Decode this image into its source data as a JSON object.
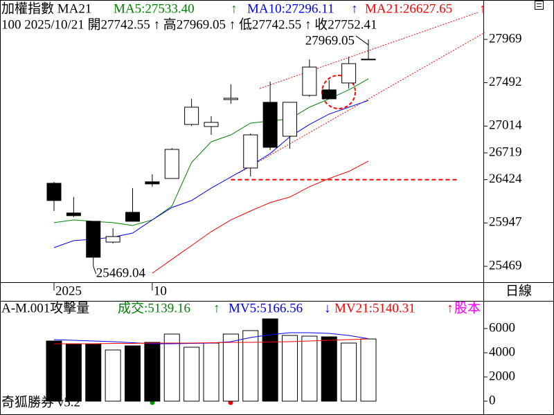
{
  "chart_data": [
    {
      "type": "candlestick",
      "title": "加權指數 MA21",
      "subtitle": "100 2025/10/21 開27742.55 ↑ 高27969.05 ↑ 低27742.55 ↑ 收27752.41",
      "categories": [
        "2025",
        null,
        null,
        null,
        null,
        "10",
        null,
        null,
        null,
        null,
        null,
        null,
        null,
        null,
        null,
        null,
        null
      ],
      "open": [
        26384,
        26057,
        25965,
        25736,
        26064,
        26400,
        26437,
        27032,
        27009,
        27306,
        26552,
        27276,
        26902,
        27352,
        27413,
        27489,
        27742.55
      ],
      "high": [
        26399,
        26232,
        25965,
        25889,
        26331,
        26483,
        26772,
        27314,
        27123,
        27474,
        26932,
        27504,
        27276,
        27748,
        27520,
        27778,
        27969.05
      ],
      "low": [
        26079,
        26011,
        25469.04,
        25721,
        25965,
        26346,
        26437,
        27017,
        26917,
        27260,
        26460,
        26750,
        26765,
        27337,
        27314,
        27428,
        27742.55
      ],
      "close": [
        26194,
        26027,
        25569,
        25797,
        25965,
        26377,
        26757,
        27222,
        27055,
        27321,
        26917,
        26780,
        27276,
        27664,
        27314,
        27702,
        27752.41
      ],
      "series": [
        {
          "name": "MA5:27533.40",
          "arrow": "↑",
          "color": "#008000",
          "values": [
            25950,
            25980,
            25965,
            25950,
            25919,
            25980,
            26133,
            26613,
            26841,
            26917,
            27047,
            27070,
            27093,
            27222,
            27314,
            27413,
            27533.4
          ]
        },
        {
          "name": "MA10:27296.11",
          "arrow": "↑",
          "color": "#0000ff",
          "values": [
            25675,
            25752,
            25767,
            25790,
            25835,
            25980,
            26117,
            26194,
            26331,
            26453,
            26575,
            26712,
            26895,
            27032,
            27146,
            27222,
            27296.11
          ]
        },
        {
          "name": "MA21:26627.65",
          "arrow": "↑",
          "color": "#ff0000",
          "values": [
            null,
            null,
            null,
            null,
            null,
            25393,
            25546,
            25698,
            25851,
            25980,
            26079,
            26171,
            26232,
            26346,
            26437,
            26514,
            26627.65
          ]
        }
      ],
      "annotations": [
        {
          "value": 27969.05,
          "label": "27969.05"
        },
        {
          "value": 25469.04,
          "label": "25469.04"
        }
      ],
      "support": 26424,
      "period": "日線",
      "ylim": [
        25294,
        28403
      ],
      "yticks": [
        27969,
        27492,
        27014,
        26719,
        26424,
        25947,
        25469
      ]
    },
    {
      "type": "volume",
      "title": "A-M.001攻擊量",
      "series": [
        {
          "name": "成交:5139.16",
          "arrow": "↑",
          "color": "#008000",
          "values": [
            4971,
            4743,
            4743,
            4229,
            4571,
            4857,
            5543,
            4457,
            4800,
            5543,
            5829,
            6800,
            5429,
            5371,
            5314,
            4800,
            5139.16
          ]
        },
        {
          "name": "MV5:5166.56",
          "arrow": "↓",
          "color": "#0000ff",
          "values": [
            5086,
            5029,
            4971,
            4914,
            4829,
            4743,
            4743,
            4771,
            4800,
            4914,
            5257,
            5486,
            5657,
            5657,
            5600,
            5429,
            5166.56
          ]
        },
        {
          "name": "MV21:5140.31",
          "arrow": "↑",
          "color": "#ff0000",
          "values": [
            4743,
            4743,
            4743,
            4771,
            4771,
            4800,
            4800,
            4800,
            4829,
            4857,
            4857,
            4886,
            4914,
            4971,
            5029,
            5086,
            5140.31
          ]
        }
      ],
      "extra_legend": {
        "label": "股本",
        "color": "#ff00ff"
      },
      "ylim": [
        0,
        8000
      ],
      "yticks": [
        6000,
        4000,
        2000,
        0
      ]
    }
  ],
  "footer": "奇狐勝券 v5.2"
}
